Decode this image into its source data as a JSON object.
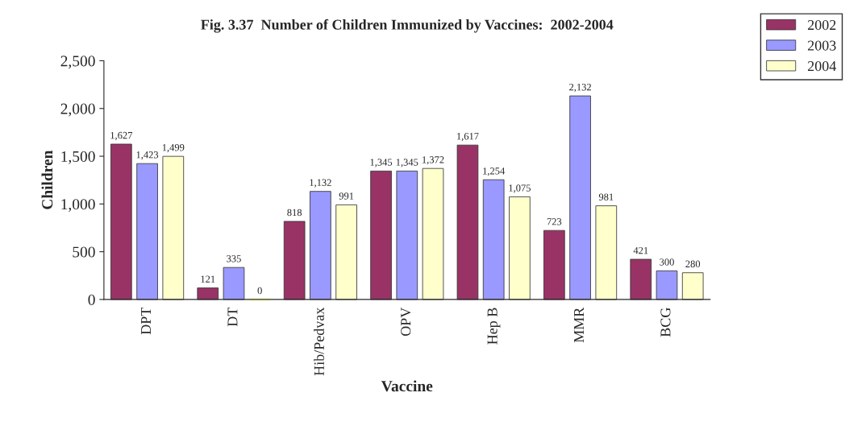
{
  "chart_data": {
    "type": "bar",
    "title": "Fig. 3.37  Number of Children Immunized by Vaccines:  2002-2004",
    "xlabel": "Vaccine",
    "ylabel": "Children",
    "categories": [
      "DPT",
      "DT",
      "Hib/Pedvax",
      "OPV",
      "Hep B",
      "MMR",
      "BCG"
    ],
    "series": [
      {
        "name": "2002",
        "color": "#993366",
        "values": [
          1627,
          121,
          818,
          1345,
          1617,
          723,
          421
        ],
        "value_labels": [
          "1,627",
          "121",
          "818",
          "1,345",
          "1,617",
          "723",
          "421"
        ]
      },
      {
        "name": "2003",
        "color": "#9999ff",
        "values": [
          1423,
          335,
          1132,
          1345,
          1254,
          2132,
          300
        ],
        "value_labels": [
          "1,423",
          "335",
          "1,132",
          "1,345",
          "1,254",
          "2,132",
          "300"
        ]
      },
      {
        "name": "2004",
        "color": "#ffffcc",
        "values": [
          1499,
          0,
          991,
          1372,
          1075,
          981,
          280
        ],
        "value_labels": [
          "1,499",
          "0",
          "991",
          "1,372",
          "1,075",
          "981",
          "280"
        ]
      }
    ],
    "ylim": [
      0,
      2500
    ],
    "yticks": [
      0,
      {
        "value": 500,
        "label": "500"
      },
      {
        "value": 1000,
        "label": "1,000"
      },
      {
        "value": 1500,
        "label": "1,500"
      },
      {
        "value": 2000,
        "label": "2,000"
      },
      {
        "value": 2500,
        "label": "2,500"
      }
    ],
    "grid": false,
    "legend": "top right"
  }
}
